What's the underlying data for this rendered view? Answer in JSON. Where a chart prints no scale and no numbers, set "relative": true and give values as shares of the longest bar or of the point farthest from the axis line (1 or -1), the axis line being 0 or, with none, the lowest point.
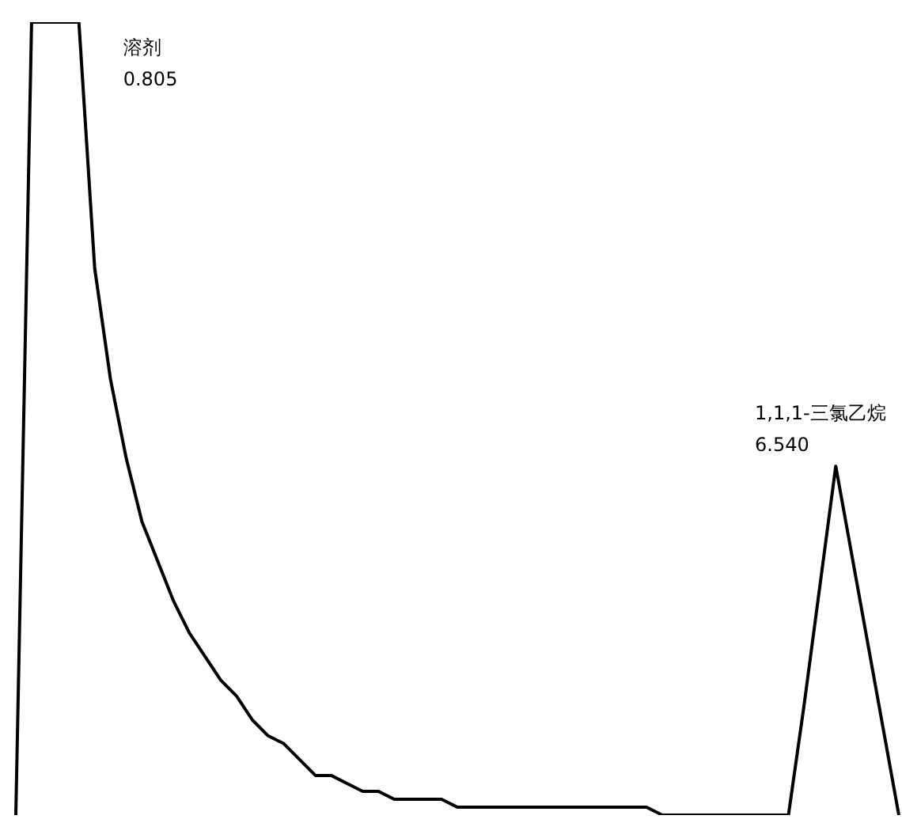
{
  "chart_data": {
    "type": "line",
    "relative": true,
    "categories": [
      null,
      null,
      null,
      null,
      null,
      null,
      null,
      null,
      null,
      null,
      null,
      null,
      null,
      null,
      null,
      null,
      null,
      null,
      null,
      null,
      null,
      null,
      null,
      null,
      null,
      null,
      null,
      null,
      null,
      null,
      null,
      null,
      null,
      null,
      null,
      null,
      null,
      null,
      null,
      null,
      null,
      null,
      null,
      null,
      null,
      null,
      null,
      null,
      null,
      null,
      null,
      null,
      null,
      null,
      null,
      null,
      null
    ],
    "series": [
      {
        "color": "#000000",
        "values": [
          0,
          1,
          1,
          1,
          1,
          0.69,
          0.55,
          0.45,
          0.37,
          0.32,
          0.27,
          0.23,
          0.2,
          0.17,
          0.15,
          0.12,
          0.1,
          0.09,
          0.07,
          0.05,
          0.05,
          0.04,
          0.03,
          0.03,
          0.02,
          0.02,
          0.02,
          0.02,
          0.01,
          0.01,
          0.01,
          0.01,
          0.01,
          0.01,
          0.01,
          0.01,
          0.01,
          0.01,
          0.01,
          0.01,
          0.01,
          0,
          0,
          0,
          0,
          0,
          0,
          0,
          0,
          0,
          0.14,
          0.29,
          0.44,
          0.33,
          0.22,
          0.11,
          0
        ]
      }
    ],
    "annotations": [
      "溶剂\n0.805",
      "1,1,1-三氯乙烷\n6.540"
    ],
    "marker": "none",
    "line_style": "solid"
  }
}
